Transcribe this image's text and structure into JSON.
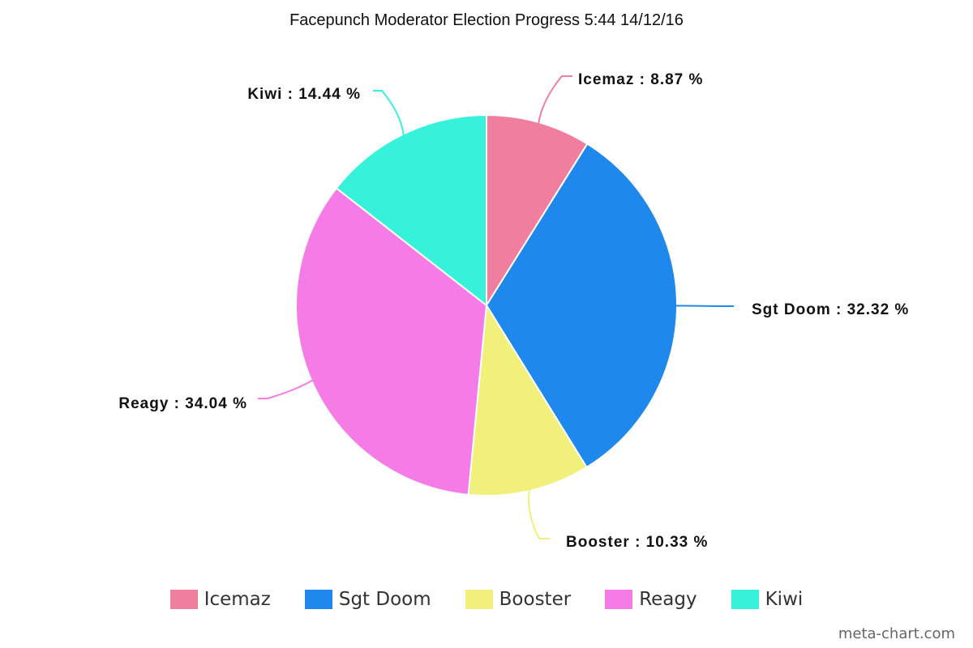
{
  "chart_data": {
    "type": "pie",
    "title": "Facepunch Moderator Election Progress 5:44 14/12/16",
    "label_suffix": " %",
    "slices": [
      {
        "name": "Icemaz",
        "value": 8.87,
        "color": "#f07f9f"
      },
      {
        "name": "Sgt Doom",
        "value": 32.32,
        "color": "#1e88ec"
      },
      {
        "name": "Booster",
        "value": 10.33,
        "color": "#f0f07a"
      },
      {
        "name": "Reagy",
        "value": 34.04,
        "color": "#f57ce6"
      },
      {
        "name": "Kiwi",
        "value": 14.44,
        "color": "#36f2da"
      }
    ],
    "legend_position": "bottom"
  },
  "watermark": "meta-chart.com"
}
